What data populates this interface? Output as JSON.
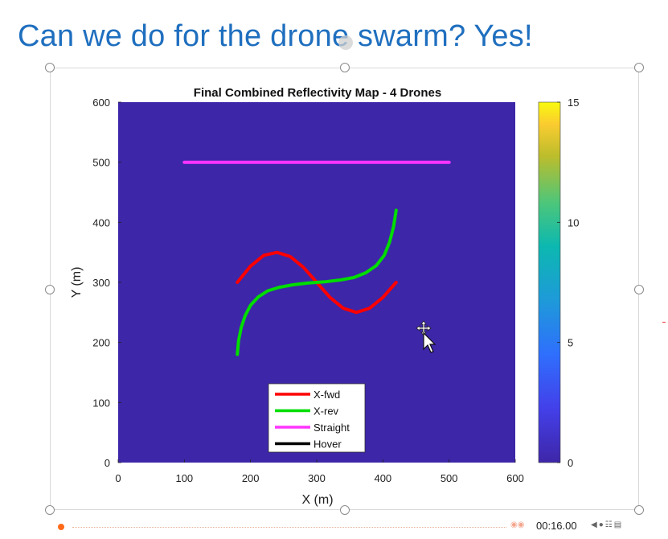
{
  "slide": {
    "title": "Can we do for the drone swarm? Yes!"
  },
  "chart_data": {
    "type": "heatmap",
    "title": "Final Combined Reflectivity Map - 4 Drones",
    "xlabel": "X (m)",
    "ylabel": "Y (m)",
    "xlim": [
      0,
      600
    ],
    "ylim": [
      0,
      600
    ],
    "xticks": [
      "0",
      "100",
      "200",
      "300",
      "400",
      "500",
      "600"
    ],
    "yticks": [
      "0",
      "100",
      "200",
      "300",
      "400",
      "500",
      "600"
    ],
    "colorbar": {
      "range": [
        0,
        15
      ],
      "ticks": [
        "0",
        "5",
        "10",
        "15"
      ],
      "colormap": "parula"
    },
    "background_value": 0,
    "background_color": "#3d26a8",
    "legend_position": "bottom-center",
    "series": [
      {
        "name": "X-fwd",
        "color": "#ff0000",
        "x": [
          180,
          200,
          220,
          240,
          260,
          280,
          300,
          320,
          340,
          360,
          380,
          400,
          420
        ],
        "y": [
          300,
          327,
          345,
          350,
          343,
          325,
          300,
          275,
          257,
          250,
          257,
          275,
          300
        ]
      },
      {
        "name": "X-rev",
        "color": "#00dd00",
        "x": [
          180,
          182,
          186,
          192,
          200,
          212,
          226,
          244,
          264,
          288,
          312,
          336,
          356,
          374,
          390,
          402,
          410,
          416,
          420
        ],
        "y": [
          180,
          203,
          225,
          245,
          262,
          276,
          286,
          292,
          296,
          299,
          301,
          304,
          308,
          316,
          328,
          345,
          367,
          392,
          420
        ]
      },
      {
        "name": "Straight",
        "color": "#ff33ff",
        "x": [
          100,
          500
        ],
        "y": [
          500,
          500
        ]
      },
      {
        "name": "Hover",
        "color": "#000000",
        "x": [],
        "y": []
      }
    ]
  },
  "player": {
    "time": "00:16.00"
  }
}
